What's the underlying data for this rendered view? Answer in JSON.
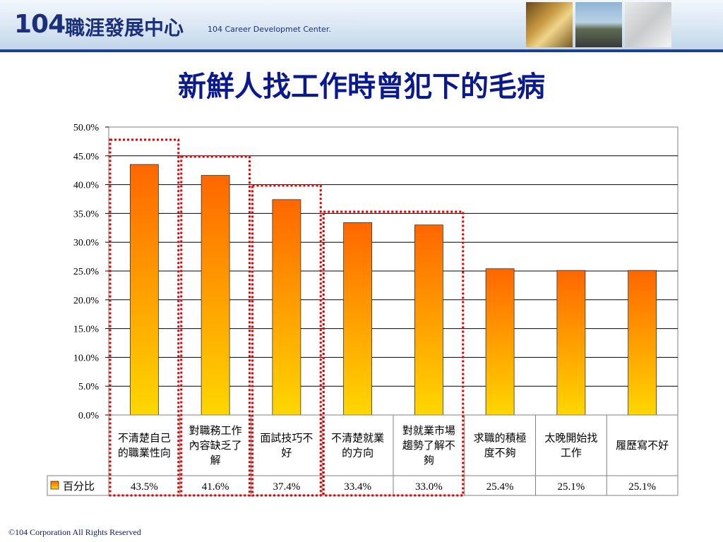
{
  "header": {
    "logo_number": "104",
    "logo_chinese": "職涯發展中心",
    "logo_english": "104 Career Developmet Center."
  },
  "slide": {
    "title": "新鮮人找工作時曾犯下的毛病"
  },
  "chart_data": {
    "type": "bar",
    "categories": [
      [
        "不清楚自己",
        "的職業性向"
      ],
      [
        "對職務工作",
        "內容缺乏了",
        "解"
      ],
      [
        "面試技巧不",
        "好"
      ],
      [
        "不清楚就業",
        "的方向"
      ],
      [
        "對就業市場",
        "趨勢了解不",
        "夠"
      ],
      [
        "求職的積極",
        "度不夠"
      ],
      [
        "太晚開始找",
        "工作"
      ],
      [
        "履歷寫不好"
      ]
    ],
    "series": [
      {
        "name": "百分比",
        "values": [
          43.5,
          41.6,
          37.4,
          33.4,
          33.0,
          25.4,
          25.1,
          25.1
        ],
        "value_labels": [
          "43.5%",
          "41.6%",
          "37.4%",
          "33.4%",
          "33.0%",
          "25.4%",
          "25.1%",
          "25.1%"
        ]
      }
    ],
    "y_ticks": [
      "0.0%",
      "5.0%",
      "10.0%",
      "15.0%",
      "20.0%",
      "25.0%",
      "30.0%",
      "35.0%",
      "40.0%",
      "45.0%",
      "50.0%"
    ],
    "ylim": [
      0,
      50
    ],
    "grid": true,
    "legend": "data-table",
    "bar_colors": {
      "top": "#FF6600",
      "bottom": "#FFD700"
    },
    "highlight_groups": [
      [
        0
      ],
      [
        1
      ],
      [
        2
      ],
      [
        3,
        4
      ]
    ],
    "highlight_color": "#E00000"
  },
  "footer": {
    "copyright": "©104 Corporation All Rights Reserved"
  }
}
